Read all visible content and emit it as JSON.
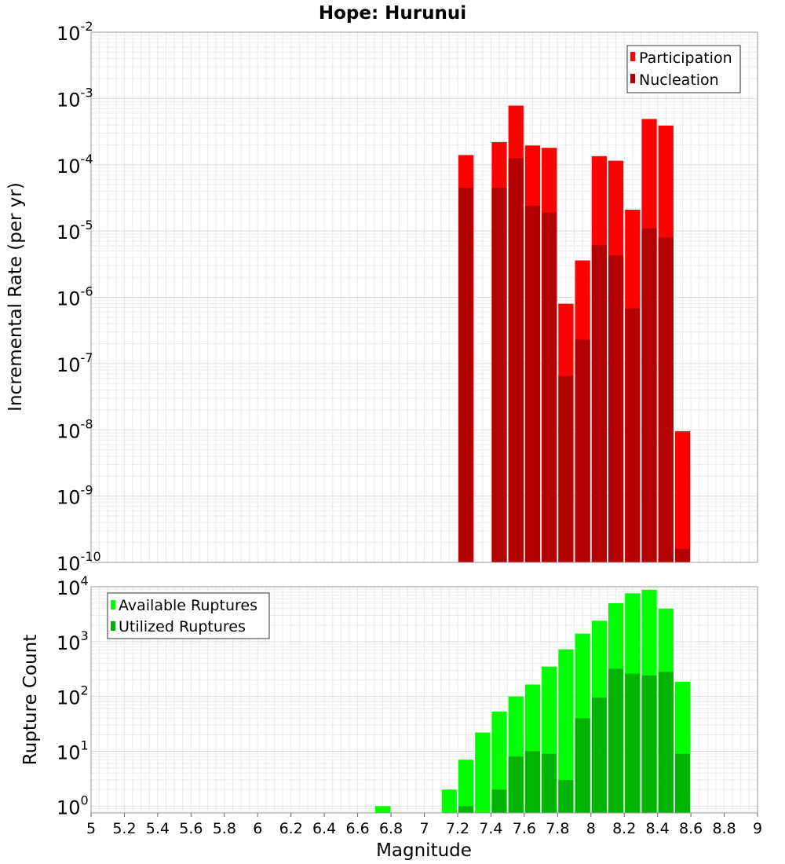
{
  "chart_data": [
    {
      "type": "bar",
      "title": "Hope: Hurunui",
      "ylabel": "Incremental Rate (per yr)",
      "xlabel": "",
      "yscale": "log",
      "xlim": [
        5,
        9
      ],
      "ylim": [
        1e-10,
        0.01
      ],
      "y_tick_exponents": [
        -2,
        -3,
        -4,
        -5,
        -6,
        -7,
        -8,
        -9,
        -10
      ],
      "grid": true,
      "legend_position": "top-right",
      "bin_width": 0.1,
      "series": [
        {
          "name": "Participation",
          "color": "#ff0000",
          "x": [
            7.25,
            7.45,
            7.55,
            7.65,
            7.75,
            7.85,
            7.95,
            8.05,
            8.15,
            8.25,
            8.35,
            8.45,
            8.55
          ],
          "values": [
            0.00014,
            0.00022,
            0.00078,
            0.000195,
            0.00018,
            8e-07,
            3.6e-06,
            0.000135,
            0.000115,
            2.1e-05,
            0.00049,
            0.00039,
            9.5e-09
          ]
        },
        {
          "name": "Nucleation",
          "color": "#b30000",
          "x": [
            7.25,
            7.45,
            7.55,
            7.65,
            7.75,
            7.85,
            7.95,
            8.05,
            8.15,
            8.25,
            8.35,
            8.45,
            8.55
          ],
          "values": [
            4.5e-05,
            4.5e-05,
            0.000125,
            2.4e-05,
            1.9e-05,
            6.5e-08,
            2.3e-07,
            6.1e-06,
            4.3e-06,
            6.8e-07,
            1.1e-05,
            8e-06,
            1.6e-10
          ]
        }
      ]
    },
    {
      "type": "bar",
      "title": "",
      "xlabel": "Magnitude",
      "ylabel": "Rupture Count",
      "yscale": "log",
      "xlim": [
        5,
        9
      ],
      "ylim": [
        0.75,
        10000
      ],
      "y_tick_exponents": [
        4,
        3,
        2,
        1,
        0
      ],
      "x_ticks": [
        "5",
        "5.2",
        "5.4",
        "5.6",
        "5.8",
        "6",
        "6.2",
        "6.4",
        "6.6",
        "6.8",
        "7",
        "7.2",
        "7.4",
        "7.6",
        "7.8",
        "8",
        "8.2",
        "8.4",
        "8.6",
        "8.8",
        "9"
      ],
      "grid": true,
      "legend_position": "top-left",
      "bin_width": 0.1,
      "series": [
        {
          "name": "Available Ruptures",
          "color": "#00ff00",
          "x": [
            6.75,
            7.15,
            7.25,
            7.35,
            7.45,
            7.55,
            7.65,
            7.75,
            7.85,
            7.95,
            8.05,
            8.15,
            8.25,
            8.35,
            8.45,
            8.55
          ],
          "values": [
            1,
            2,
            7,
            22,
            53,
            100,
            165,
            350,
            720,
            1400,
            2400,
            5000,
            7600,
            8800,
            4000,
            185
          ]
        },
        {
          "name": "Utilized Ruptures",
          "color": "#00b300",
          "x": [
            7.25,
            7.45,
            7.55,
            7.65,
            7.75,
            7.85,
            7.95,
            8.05,
            8.15,
            8.25,
            8.35,
            8.45,
            8.55
          ],
          "values": [
            1,
            2,
            8,
            10,
            9,
            3,
            40,
            95,
            320,
            260,
            240,
            280,
            9
          ]
        }
      ]
    }
  ]
}
